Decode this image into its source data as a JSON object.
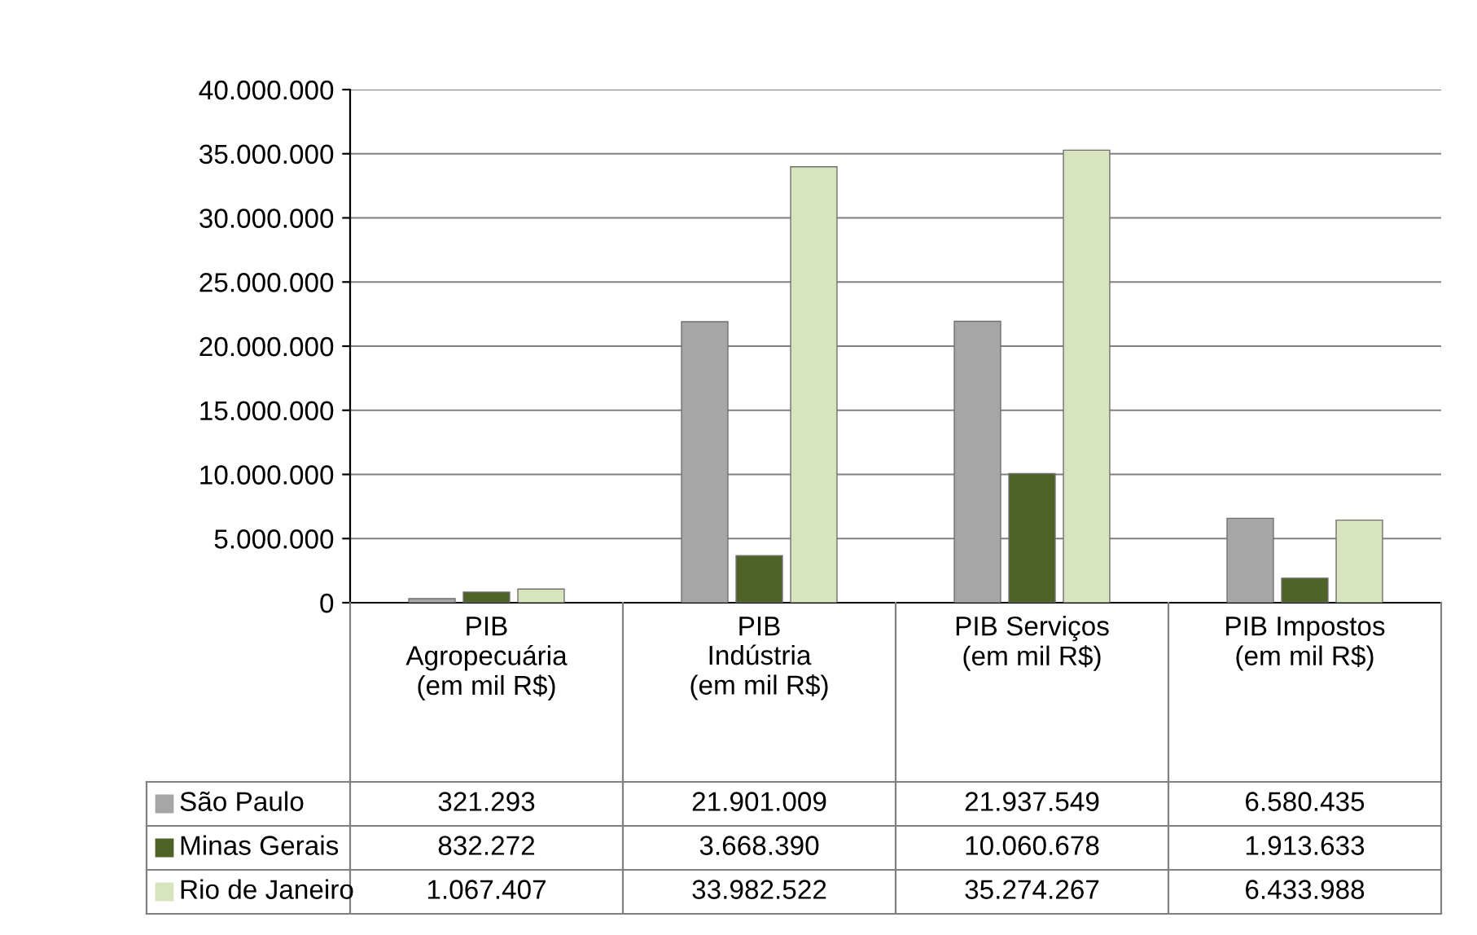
{
  "chart_data": {
    "type": "bar",
    "categories": [
      "PIB Agropecuária (em mil R$)",
      "PIB Indústria (em mil R$)",
      "PIB Serviços (em mil R$)",
      "PIB Impostos (em mil R$)"
    ],
    "series": [
      {
        "name": "São Paulo",
        "color": "#a6a6a6",
        "values": [
          321293,
          21901009,
          21937549,
          6580435
        ],
        "value_labels": [
          "321.293",
          "21.901.009",
          "21.937.549",
          "6.580.435"
        ]
      },
      {
        "name": "Minas Gerais",
        "color": "#4f6228",
        "values": [
          832272,
          3668390,
          10060678,
          1913633
        ],
        "value_labels": [
          "832.272",
          "3.668.390",
          "10.060.678",
          "1.913.633"
        ]
      },
      {
        "name": "Rio de Janeiro",
        "color": "#d7e4bd",
        "values": [
          1067407,
          33982522,
          35274267,
          6433988
        ],
        "value_labels": [
          "1.067.407",
          "33.982.522",
          "35.274.267",
          "6.433.988"
        ]
      }
    ],
    "ylim": [
      0,
      40000000
    ],
    "yticks": [
      {
        "value": 0,
        "label": "0"
      },
      {
        "value": 5000000,
        "label": "5.000.000"
      },
      {
        "value": 10000000,
        "label": "10.000.000"
      },
      {
        "value": 15000000,
        "label": "15.000.000"
      },
      {
        "value": 20000000,
        "label": "20.000.000"
      },
      {
        "value": 25000000,
        "label": "25.000.000"
      },
      {
        "value": 30000000,
        "label": "30.000.000"
      },
      {
        "value": 35000000,
        "label": "35.000.000"
      },
      {
        "value": 40000000,
        "label": "40.000.000"
      }
    ],
    "grid": "y",
    "legend": "bottom"
  }
}
